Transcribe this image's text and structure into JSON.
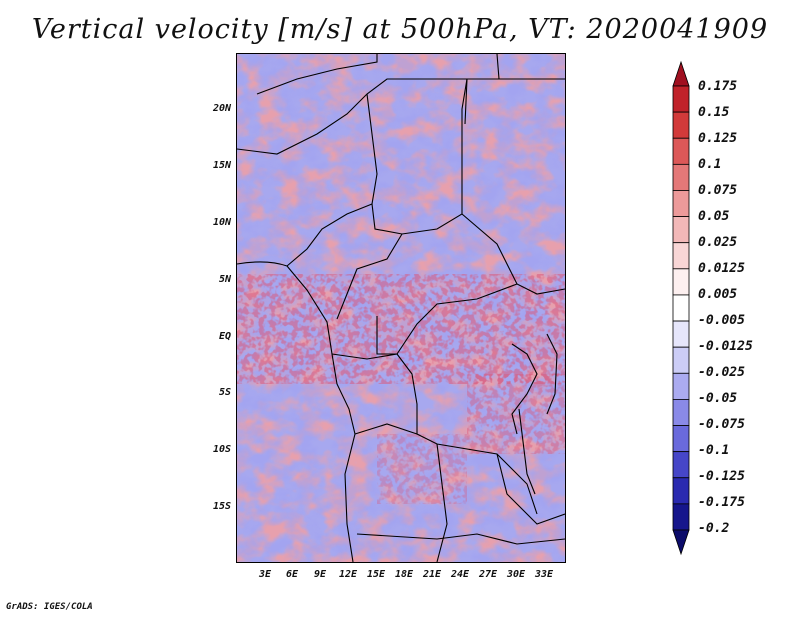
{
  "title": "Vertical velocity [m/s] at 500hPa, VT: 2020041909",
  "credit": "GrADS: IGES/COLA",
  "lat_labels": [
    "20N",
    "15N",
    "10N",
    "5N",
    "EQ",
    "5S",
    "10S",
    "15S"
  ],
  "lon_labels": [
    "3E",
    "6E",
    "9E",
    "12E",
    "15E",
    "18E",
    "21E",
    "24E",
    "27E",
    "30E",
    "33E"
  ],
  "colorbar": {
    "levels": [
      "0.175",
      "0.15",
      "0.125",
      "0.1",
      "0.075",
      "0.05",
      "0.025",
      "0.0125",
      "0.005",
      "-0.005",
      "-0.0125",
      "-0.025",
      "-0.05",
      "-0.075",
      "-0.1",
      "-0.125",
      "-0.175",
      "-0.2"
    ],
    "colors": [
      "#a01020",
      "#c0222a",
      "#d23a3a",
      "#dc5858",
      "#e47878",
      "#ec9a9a",
      "#f2b8b8",
      "#f8d6d6",
      "#fdf0f0",
      "#ffffff",
      "#e6e6fb",
      "#cccdf6",
      "#ababf0",
      "#8a8ae8",
      "#6a6adc",
      "#4646c8",
      "#2a2ab0",
      "#16168c",
      "#0c0c6a"
    ]
  }
}
